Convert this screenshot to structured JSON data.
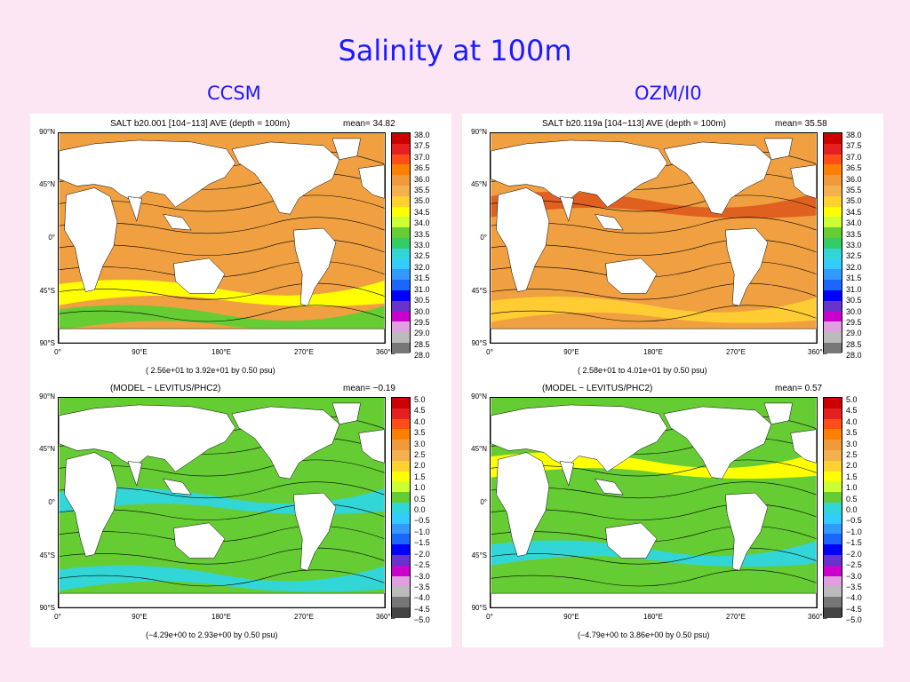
{
  "slide": {
    "title": "Salinity at 100m"
  },
  "columns": [
    {
      "title": "CCSM",
      "top": {
        "header_left": "SALT b20.001 [104−113] AVE (depth = 100m)",
        "header_mean": "mean=  34.82",
        "footer": "( 2.56e+01 to  3.92e+01 by   0.50 psu)",
        "scale_key": "salt",
        "fill": "#f0a040",
        "bands": [
          {
            "c": "#ffff00",
            "y": 0.72
          },
          {
            "c": "#66cc33",
            "y": 0.84
          }
        ]
      },
      "bottom": {
        "header_left": "(MODEL − LEVITUS/PHC2)",
        "header_mean": "mean=  −0.19",
        "footer": "(−4.29e+00 to  2.93e+00 by   0.50 psu)",
        "scale_key": "diff",
        "fill": "#66cc33",
        "bands": [
          {
            "c": "#33d6d6",
            "y": 0.45
          },
          {
            "c": "#66cc33",
            "y": 0.7
          },
          {
            "c": "#33d6d6",
            "y": 0.82
          }
        ]
      }
    },
    {
      "title": "OZM/I0",
      "top": {
        "header_left": "SALT b20.119a [104−113] AVE (depth = 100m)",
        "header_mean": "mean=  35.58",
        "footer": "( 2.58e+01 to  4.01e+01 by   0.50 psu)",
        "scale_key": "salt",
        "fill": "#f0a040",
        "bands": [
          {
            "c": "#e06020",
            "y": 0.3
          },
          {
            "c": "#f0a040",
            "y": 0.55
          },
          {
            "c": "#ffcc33",
            "y": 0.8
          }
        ]
      },
      "bottom": {
        "header_left": "(MODEL − LEVITUS/PHC2)",
        "header_mean": "mean=   0.57",
        "footer": "(−4.79e+00 to  3.86e+00 by   0.50 psu)",
        "scale_key": "diff",
        "fill": "#66cc33",
        "bands": [
          {
            "c": "#ffff00",
            "y": 0.28
          },
          {
            "c": "#66cc33",
            "y": 0.55
          },
          {
            "c": "#33d6d6",
            "y": 0.7
          },
          {
            "c": "#66cc33",
            "y": 0.8
          }
        ]
      }
    }
  ],
  "axes": {
    "x_ticks": [
      "0°",
      "90°E",
      "180°E",
      "270°E",
      "360°E"
    ],
    "y_ticks": [
      "90°N",
      "45°N",
      "0°",
      "45°S",
      "90°S"
    ]
  },
  "scales": {
    "salt": {
      "labels": [
        "38.0",
        "37.5",
        "37.0",
        "36.5",
        "36.0",
        "35.5",
        "35.0",
        "34.5",
        "34.0",
        "33.5",
        "33.0",
        "32.5",
        "32.0",
        "31.5",
        "31.0",
        "30.5",
        "30.0",
        "29.5",
        "29.0",
        "28.5",
        "28.0"
      ],
      "colors": [
        "#cc0000",
        "#e62020",
        "#ff4d1a",
        "#ff8000",
        "#f09a3a",
        "#f5b050",
        "#ffd230",
        "#ffff00",
        "#ccff33",
        "#66cc33",
        "#33cc66",
        "#33d6d6",
        "#33ccff",
        "#3399ff",
        "#1a66ff",
        "#0000ff",
        "#6633cc",
        "#cc00cc",
        "#e0a0e0",
        "#bbbbbb",
        "#777777"
      ]
    },
    "diff": {
      "labels": [
        "5.0",
        "4.5",
        "4.0",
        "3.5",
        "3.0",
        "2.5",
        "2.0",
        "1.5",
        "1.0",
        "0.5",
        "0.0",
        "−0.5",
        "−1.0",
        "−1.5",
        "−2.0",
        "−2.5",
        "−3.0",
        "−3.5",
        "−4.0",
        "−4.5",
        "−5.0"
      ],
      "colors": [
        "#cc0000",
        "#e62020",
        "#ff4d1a",
        "#ff8000",
        "#f09a3a",
        "#f5b050",
        "#ffd230",
        "#ffff00",
        "#ccff33",
        "#66cc33",
        "#33d6d6",
        "#33ccff",
        "#3399ff",
        "#1a66ff",
        "#0000ff",
        "#6633cc",
        "#cc00cc",
        "#e0a0e0",
        "#bbbbbb",
        "#777777",
        "#444444"
      ]
    }
  },
  "land_color": "#ffffff"
}
